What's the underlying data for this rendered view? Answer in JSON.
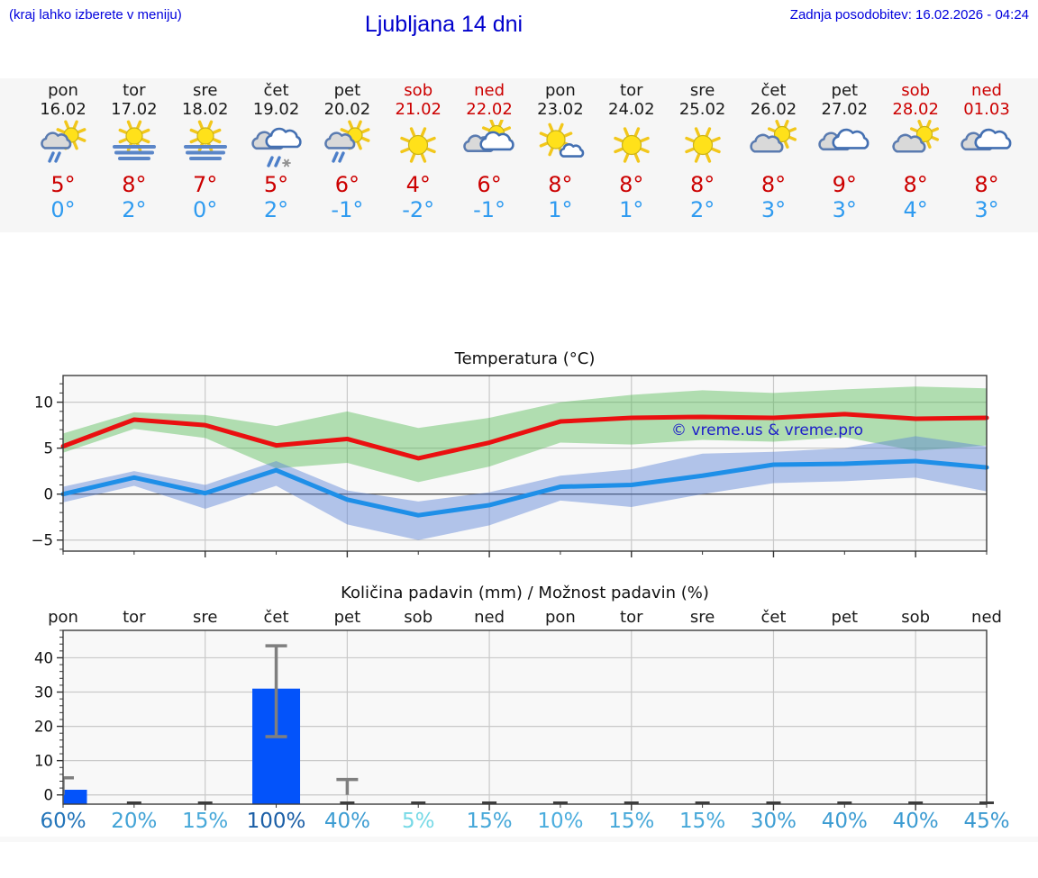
{
  "header": {
    "hint": "(kraj lahko izberete v meniju)",
    "title": "Ljubljana 14 dni",
    "updated": "Zadnja posodobitev: 16.02.2026 - 04:24"
  },
  "colors": {
    "link_blue": "#0000dd",
    "title_blue": "#0000cc",
    "weekend_red": "#cc0000",
    "temp_max_red": "#cc0000",
    "temp_min_blue": "#2f9bf0",
    "line_max": "#ea1010",
    "line_min": "#1e8fe8",
    "band_max_green": "#4db84d",
    "band_min_blue": "#5b83d6",
    "bar_blue": "#0353fa",
    "whisker_gray": "#7f7f7f",
    "band_bg": "#f6f6f6",
    "plot_bg": "#f8f8f8"
  },
  "forecast": {
    "days": [
      {
        "name": "pon",
        "date": "16.02",
        "weekend": false,
        "icon": "sun-cloud-rain",
        "tmax": "5°",
        "tmin": "0°"
      },
      {
        "name": "tor",
        "date": "17.02",
        "weekend": false,
        "icon": "sun-fog",
        "tmax": "8°",
        "tmin": "2°"
      },
      {
        "name": "sre",
        "date": "18.02",
        "weekend": false,
        "icon": "sun-fog",
        "tmax": "7°",
        "tmin": "0°"
      },
      {
        "name": "čet",
        "date": "19.02",
        "weekend": false,
        "icon": "clouds-sleet",
        "tmax": "5°",
        "tmin": "2°"
      },
      {
        "name": "pet",
        "date": "20.02",
        "weekend": false,
        "icon": "sun-cloud-rain",
        "tmax": "6°",
        "tmin": "-1°"
      },
      {
        "name": "sob",
        "date": "21.02",
        "weekend": true,
        "icon": "sun",
        "tmax": "4°",
        "tmin": "-2°"
      },
      {
        "name": "ned",
        "date": "22.02",
        "weekend": true,
        "icon": "sun-clouds",
        "tmax": "6°",
        "tmin": "-1°"
      },
      {
        "name": "pon",
        "date": "23.02",
        "weekend": false,
        "icon": "sun-small-cloud",
        "tmax": "8°",
        "tmin": "1°"
      },
      {
        "name": "tor",
        "date": "24.02",
        "weekend": false,
        "icon": "sun",
        "tmax": "8°",
        "tmin": "1°"
      },
      {
        "name": "sre",
        "date": "25.02",
        "weekend": false,
        "icon": "sun",
        "tmax": "8°",
        "tmin": "2°"
      },
      {
        "name": "čet",
        "date": "26.02",
        "weekend": false,
        "icon": "cloud-sun",
        "tmax": "8°",
        "tmin": "3°"
      },
      {
        "name": "pet",
        "date": "27.02",
        "weekend": false,
        "icon": "clouds",
        "tmax": "9°",
        "tmin": "3°"
      },
      {
        "name": "sob",
        "date": "28.02",
        "weekend": true,
        "icon": "cloud-sun",
        "tmax": "8°",
        "tmin": "4°"
      },
      {
        "name": "ned",
        "date": "01.03",
        "weekend": true,
        "icon": "clouds",
        "tmax": "8°",
        "tmin": "3°"
      }
    ]
  },
  "chart_data": [
    {
      "type": "line",
      "title": "Temperatura (°C)",
      "x": [
        "pon 16.02",
        "tor 17.02",
        "sre 18.02",
        "čet 19.02",
        "pet 20.02",
        "sob 21.02",
        "ned 22.02",
        "pon 23.02",
        "tor 24.02",
        "sre 25.02",
        "čet 26.02",
        "pet 27.02",
        "sob 28.02",
        "ned 01.03"
      ],
      "ylim": [
        -6.2,
        12.9
      ],
      "yticks": [
        -5,
        0,
        5,
        10
      ],
      "grid": true,
      "legend_position": "none",
      "watermark": "© vreme.us & vreme.pro",
      "series": [
        {
          "name": "max temperature",
          "color": "#ea1010",
          "values": [
            5.2,
            8.1,
            7.5,
            5.3,
            6.0,
            3.9,
            5.6,
            7.9,
            8.3,
            8.4,
            8.3,
            8.7,
            8.2,
            8.3
          ]
        },
        {
          "name": "min temperature",
          "color": "#1e8fe8",
          "values": [
            0.0,
            1.8,
            0.1,
            2.6,
            -0.6,
            -2.3,
            -1.2,
            0.8,
            1.0,
            2.0,
            3.2,
            3.3,
            3.6,
            2.9
          ]
        },
        {
          "name": "max range upper",
          "color": "#4db84d",
          "values": [
            6.6,
            8.9,
            8.6,
            7.4,
            9.0,
            7.2,
            8.3,
            10.0,
            10.8,
            11.3,
            11.0,
            11.4,
            11.7,
            11.5
          ]
        },
        {
          "name": "max range lower",
          "color": "#4db84d",
          "values": [
            4.5,
            7.1,
            6.1,
            2.8,
            3.4,
            1.3,
            3.0,
            5.6,
            5.4,
            5.9,
            5.7,
            6.2,
            4.7,
            5.3
          ]
        },
        {
          "name": "min range upper",
          "color": "#5b83d6",
          "values": [
            0.8,
            2.5,
            1.0,
            3.6,
            0.4,
            -0.8,
            0.2,
            2.0,
            2.7,
            4.4,
            4.6,
            5.0,
            6.3,
            5.2
          ]
        },
        {
          "name": "min range lower",
          "color": "#5b83d6",
          "values": [
            -0.9,
            0.9,
            -1.6,
            0.9,
            -3.3,
            -5.0,
            -3.4,
            -0.7,
            -1.4,
            0.0,
            1.2,
            1.4,
            1.8,
            0.3
          ]
        }
      ]
    },
    {
      "type": "bar",
      "title": "Količina padavin (mm) / Možnost padavin (%)",
      "categories": [
        "pon",
        "tor",
        "sre",
        "čet",
        "pet",
        "sob",
        "ned",
        "pon",
        "tor",
        "sre",
        "čet",
        "pet",
        "sob",
        "ned"
      ],
      "values": [
        1.5,
        0,
        0,
        31,
        0,
        0,
        0,
        0,
        0,
        0,
        0,
        0,
        0,
        0
      ],
      "whiskers": [
        {
          "day_index": 0,
          "lo": 0,
          "hi": 5
        },
        {
          "day_index": 3,
          "lo": 17,
          "hi": 43.5
        },
        {
          "day_index": 4,
          "lo": 0,
          "hi": 4.5
        }
      ],
      "probabilities": [
        {
          "label": "60%",
          "color": "#2274b9"
        },
        {
          "label": "20%",
          "color": "#42a3d6"
        },
        {
          "label": "15%",
          "color": "#47a8d9"
        },
        {
          "label": "100%",
          "color": "#1a5ea6"
        },
        {
          "label": "40%",
          "color": "#3c9cd2"
        },
        {
          "label": "5%",
          "color": "#77d9e6"
        },
        {
          "label": "15%",
          "color": "#47a8d9"
        },
        {
          "label": "10%",
          "color": "#4badde"
        },
        {
          "label": "15%",
          "color": "#47a8d9"
        },
        {
          "label": "15%",
          "color": "#47a8d9"
        },
        {
          "label": "30%",
          "color": "#3f9fd4"
        },
        {
          "label": "40%",
          "color": "#3c9cd2"
        },
        {
          "label": "40%",
          "color": "#3c9cd2"
        },
        {
          "label": "45%",
          "color": "#3a99d0"
        }
      ],
      "ylim": [
        -2.7,
        48
      ],
      "yticks": [
        0,
        10,
        20,
        30,
        40
      ],
      "grid": true
    }
  ]
}
